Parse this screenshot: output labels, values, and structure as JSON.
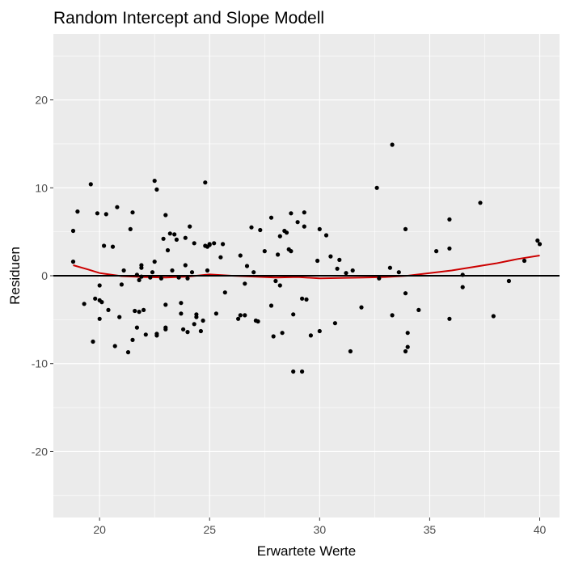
{
  "chart_data": {
    "type": "scatter",
    "title": "Random Intercept and Slope Modell",
    "xlabel": "Erwartete Werte",
    "ylabel": "Residuen",
    "xlim": [
      17.9,
      40.9
    ],
    "ylim": [
      -27.5,
      27.5
    ],
    "xticks": [
      20,
      25,
      30,
      35,
      40
    ],
    "yticks": [
      -20,
      -10,
      0,
      10,
      20
    ],
    "x_tick_labels": [
      "20",
      "25",
      "30",
      "35",
      "40"
    ],
    "y_tick_labels": [
      "-20",
      "-10",
      "0",
      "10",
      "20"
    ],
    "grid": true,
    "panel_background": "#ebebeb",
    "grid_color": "#ffffff",
    "point_color": "#000000",
    "hline": {
      "y": 0,
      "color": "#000000"
    },
    "smooth": {
      "color": "#cc0000",
      "points": [
        [
          18.8,
          1.2
        ],
        [
          19.5,
          0.7
        ],
        [
          20.0,
          0.3
        ],
        [
          21.0,
          -0.05
        ],
        [
          22.0,
          -0.15
        ],
        [
          23.0,
          -0.2
        ],
        [
          24.0,
          -0.1
        ],
        [
          25.0,
          0.15
        ],
        [
          26.0,
          0.0
        ],
        [
          27.0,
          -0.1
        ],
        [
          28.0,
          -0.2
        ],
        [
          29.0,
          -0.15
        ],
        [
          30.0,
          -0.3
        ],
        [
          31.0,
          -0.25
        ],
        [
          32.0,
          -0.2
        ],
        [
          33.0,
          -0.15
        ],
        [
          34.0,
          0.0
        ],
        [
          35.0,
          0.3
        ],
        [
          36.0,
          0.6
        ],
        [
          37.0,
          1.0
        ],
        [
          38.0,
          1.4
        ],
        [
          39.0,
          1.9
        ],
        [
          40.0,
          2.3
        ]
      ]
    },
    "points": [
      [
        18.8,
        5.1
      ],
      [
        18.8,
        1.6
      ],
      [
        19.0,
        7.3
      ],
      [
        19.3,
        -3.2
      ],
      [
        19.6,
        10.4
      ],
      [
        19.7,
        -7.5
      ],
      [
        19.8,
        -2.6
      ],
      [
        19.9,
        7.1
      ],
      [
        20.0,
        -1.1
      ],
      [
        20.0,
        -2.8
      ],
      [
        20.0,
        -4.9
      ],
      [
        20.1,
        -3.0
      ],
      [
        20.2,
        3.4
      ],
      [
        20.3,
        7.0
      ],
      [
        20.4,
        -3.9
      ],
      [
        20.6,
        3.3
      ],
      [
        20.7,
        -8.0
      ],
      [
        20.8,
        7.8
      ],
      [
        20.9,
        -4.7
      ],
      [
        21.0,
        -1.0
      ],
      [
        21.1,
        0.6
      ],
      [
        21.3,
        -8.7
      ],
      [
        21.4,
        5.3
      ],
      [
        21.5,
        7.2
      ],
      [
        21.5,
        -7.3
      ],
      [
        21.6,
        -4.0
      ],
      [
        21.7,
        -5.9
      ],
      [
        21.7,
        0.1
      ],
      [
        21.8,
        -0.5
      ],
      [
        21.8,
        -4.1
      ],
      [
        21.9,
        0.9
      ],
      [
        21.9,
        1.2
      ],
      [
        21.9,
        -0.1
      ],
      [
        22.0,
        -3.9
      ],
      [
        22.1,
        -6.7
      ],
      [
        22.3,
        -0.2
      ],
      [
        22.4,
        0.4
      ],
      [
        22.5,
        10.8
      ],
      [
        22.5,
        1.6
      ],
      [
        22.6,
        9.8
      ],
      [
        22.6,
        -6.8
      ],
      [
        22.6,
        -6.6
      ],
      [
        22.8,
        -0.3
      ],
      [
        22.9,
        4.2
      ],
      [
        23.0,
        6.9
      ],
      [
        23.0,
        -5.9
      ],
      [
        23.0,
        -3.3
      ],
      [
        23.0,
        -6.1
      ],
      [
        23.1,
        2.9
      ],
      [
        23.2,
        4.8
      ],
      [
        23.3,
        0.6
      ],
      [
        23.4,
        4.7
      ],
      [
        23.5,
        4.1
      ],
      [
        23.6,
        -0.2
      ],
      [
        23.7,
        -4.3
      ],
      [
        23.7,
        -3.1
      ],
      [
        23.8,
        -6.1
      ],
      [
        23.9,
        4.3
      ],
      [
        23.9,
        1.2
      ],
      [
        24.0,
        -6.4
      ],
      [
        24.0,
        -0.3
      ],
      [
        24.1,
        5.6
      ],
      [
        24.2,
        0.4
      ],
      [
        24.3,
        3.7
      ],
      [
        24.3,
        -5.5
      ],
      [
        24.4,
        -4.7
      ],
      [
        24.4,
        -4.4
      ],
      [
        24.6,
        -6.3
      ],
      [
        24.7,
        -5.1
      ],
      [
        24.8,
        10.6
      ],
      [
        24.8,
        3.4
      ],
      [
        24.9,
        3.3
      ],
      [
        24.9,
        0.6
      ],
      [
        25.0,
        3.5
      ],
      [
        25.0,
        3.6
      ],
      [
        25.2,
        3.7
      ],
      [
        25.3,
        -4.3
      ],
      [
        25.5,
        2.1
      ],
      [
        25.6,
        3.6
      ],
      [
        25.7,
        -1.9
      ],
      [
        26.3,
        -4.9
      ],
      [
        26.4,
        2.3
      ],
      [
        26.4,
        -4.5
      ],
      [
        26.6,
        -0.9
      ],
      [
        26.6,
        -4.5
      ],
      [
        26.7,
        1.1
      ],
      [
        26.9,
        5.5
      ],
      [
        27.0,
        0.4
      ],
      [
        27.1,
        -5.1
      ],
      [
        27.2,
        -5.2
      ],
      [
        27.3,
        5.2
      ],
      [
        27.5,
        2.8
      ],
      [
        27.8,
        -3.4
      ],
      [
        27.8,
        6.6
      ],
      [
        27.9,
        -6.9
      ],
      [
        28.0,
        -0.6
      ],
      [
        28.1,
        2.4
      ],
      [
        28.2,
        4.5
      ],
      [
        28.2,
        -1.1
      ],
      [
        28.3,
        -6.5
      ],
      [
        28.4,
        5.1
      ],
      [
        28.5,
        4.9
      ],
      [
        28.6,
        3.0
      ],
      [
        28.7,
        7.1
      ],
      [
        28.7,
        2.8
      ],
      [
        28.8,
        -4.4
      ],
      [
        28.8,
        -10.9
      ],
      [
        29.0,
        6.1
      ],
      [
        29.2,
        -2.6
      ],
      [
        29.2,
        -10.9
      ],
      [
        29.3,
        7.2
      ],
      [
        29.3,
        5.6
      ],
      [
        29.4,
        -2.7
      ],
      [
        29.6,
        -6.8
      ],
      [
        29.9,
        1.7
      ],
      [
        30.0,
        5.3
      ],
      [
        30.0,
        -6.3
      ],
      [
        30.3,
        4.6
      ],
      [
        30.5,
        2.2
      ],
      [
        30.7,
        -5.4
      ],
      [
        30.8,
        0.8
      ],
      [
        30.9,
        1.8
      ],
      [
        31.2,
        0.3
      ],
      [
        31.4,
        -8.6
      ],
      [
        31.5,
        0.6
      ],
      [
        31.9,
        -3.6
      ],
      [
        32.6,
        10.0
      ],
      [
        32.7,
        -0.3
      ],
      [
        33.2,
        0.9
      ],
      [
        33.3,
        14.9
      ],
      [
        33.3,
        -4.5
      ],
      [
        33.6,
        0.4
      ],
      [
        33.9,
        5.3
      ],
      [
        33.9,
        -2.0
      ],
      [
        33.9,
        -8.6
      ],
      [
        34.0,
        -6.5
      ],
      [
        34.0,
        -8.1
      ],
      [
        34.5,
        -3.9
      ],
      [
        35.3,
        2.8
      ],
      [
        35.9,
        6.4
      ],
      [
        35.9,
        3.1
      ],
      [
        35.9,
        -4.9
      ],
      [
        36.5,
        0.1
      ],
      [
        36.5,
        -1.3
      ],
      [
        37.3,
        8.3
      ],
      [
        37.9,
        -4.6
      ],
      [
        38.6,
        -0.6
      ],
      [
        39.3,
        1.7
      ],
      [
        39.9,
        4.0
      ],
      [
        40.0,
        3.6
      ]
    ]
  }
}
